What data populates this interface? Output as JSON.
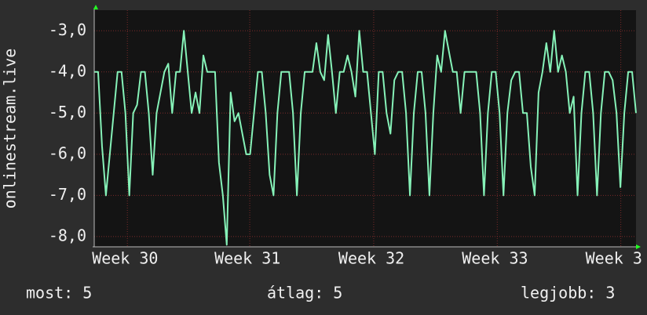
{
  "chart_data": {
    "type": "line",
    "y_label": "onlinestream.live",
    "xlim": [
      0,
      139
    ],
    "xticks": [
      {
        "value": 8.5,
        "label": "Week 30"
      },
      {
        "value": 39.9,
        "label": "Week 31"
      },
      {
        "value": 71.7,
        "label": "Week 32"
      },
      {
        "value": 103.4,
        "label": "Week 33"
      },
      {
        "value": 135.1,
        "label": "Week 3"
      }
    ],
    "ylim": [
      -8.25,
      -2.5
    ],
    "yticks": [
      {
        "value": -3,
        "label": "-3,0"
      },
      {
        "value": -4,
        "label": "-4,0"
      },
      {
        "value": -5,
        "label": "-5,0"
      },
      {
        "value": -6,
        "label": "-6,0"
      },
      {
        "value": -7,
        "label": "-7,0"
      },
      {
        "value": -8,
        "label": "-8,0"
      }
    ],
    "grid": true,
    "x": [
      0,
      1,
      2,
      3,
      4,
      5,
      6,
      7,
      8,
      9,
      10,
      11,
      12,
      13,
      14,
      15,
      16,
      17,
      18,
      19,
      20,
      21,
      22,
      23,
      24,
      25,
      26,
      27,
      28,
      29,
      30,
      31,
      32,
      33,
      34,
      35,
      36,
      37,
      38,
      39,
      40,
      41,
      42,
      43,
      44,
      45,
      46,
      47,
      48,
      49,
      50,
      51,
      52,
      53,
      54,
      55,
      56,
      57,
      58,
      59,
      60,
      61,
      62,
      63,
      64,
      65,
      66,
      67,
      68,
      69,
      70,
      71,
      72,
      73,
      74,
      75,
      76,
      77,
      78,
      79,
      80,
      81,
      82,
      83,
      84,
      85,
      86,
      87,
      88,
      89,
      90,
      91,
      92,
      93,
      94,
      95,
      96,
      97,
      98,
      99,
      100,
      101,
      102,
      103,
      104,
      105,
      106,
      107,
      108,
      109,
      110,
      111,
      112,
      113,
      114,
      115,
      116,
      117,
      118,
      119,
      120,
      121,
      122,
      123,
      124,
      125,
      126,
      127,
      128,
      129,
      130,
      131,
      132,
      133,
      134,
      135,
      136,
      137,
      138,
      139
    ],
    "series": [
      {
        "color": "#86f2b8",
        "values": [
          -4,
          -4,
          -5.8,
          -7,
          -6,
          -5,
          -4,
          -4,
          -5,
          -7,
          -5,
          -4.8,
          -4,
          -4,
          -5,
          -6.5,
          -5,
          -4.5,
          -4,
          -3.8,
          -5,
          -4,
          -4,
          -3,
          -4,
          -5,
          -4.5,
          -5,
          -3.6,
          -4,
          -4,
          -4,
          -6.2,
          -7,
          -8.2,
          -4.5,
          -5.2,
          -5,
          -5.5,
          -6,
          -6,
          -5,
          -4,
          -4,
          -5,
          -6.5,
          -7,
          -5,
          -4,
          -4,
          -4,
          -5,
          -7,
          -5,
          -4,
          -4,
          -4,
          -3.3,
          -4,
          -4.2,
          -3.1,
          -4,
          -5,
          -4,
          -4,
          -3.6,
          -4,
          -4.6,
          -3,
          -4,
          -4,
          -5,
          -6,
          -4,
          -4,
          -5,
          -5.5,
          -4.2,
          -4,
          -4,
          -5,
          -7,
          -5,
          -4,
          -4,
          -5,
          -7,
          -5,
          -3.6,
          -4,
          -3,
          -3.5,
          -4,
          -4,
          -5,
          -4,
          -4,
          -4,
          -4,
          -5,
          -7,
          -5,
          -4,
          -4,
          -5,
          -7,
          -5,
          -4.2,
          -4,
          -4,
          -5,
          -5,
          -6.3,
          -7,
          -4.5,
          -4,
          -3.3,
          -4,
          -3,
          -4,
          -3.6,
          -4,
          -5,
          -4.6,
          -7,
          -5,
          -4,
          -4,
          -5,
          -7,
          -5,
          -4,
          -4,
          -4.2,
          -5,
          -6.8,
          -5,
          -4,
          -4,
          -5
        ]
      }
    ],
    "summary": [
      {
        "label": "most:",
        "value": 5
      },
      {
        "label": "átlag:",
        "value": 5
      },
      {
        "label": "legjobb:",
        "value": 3
      }
    ]
  }
}
